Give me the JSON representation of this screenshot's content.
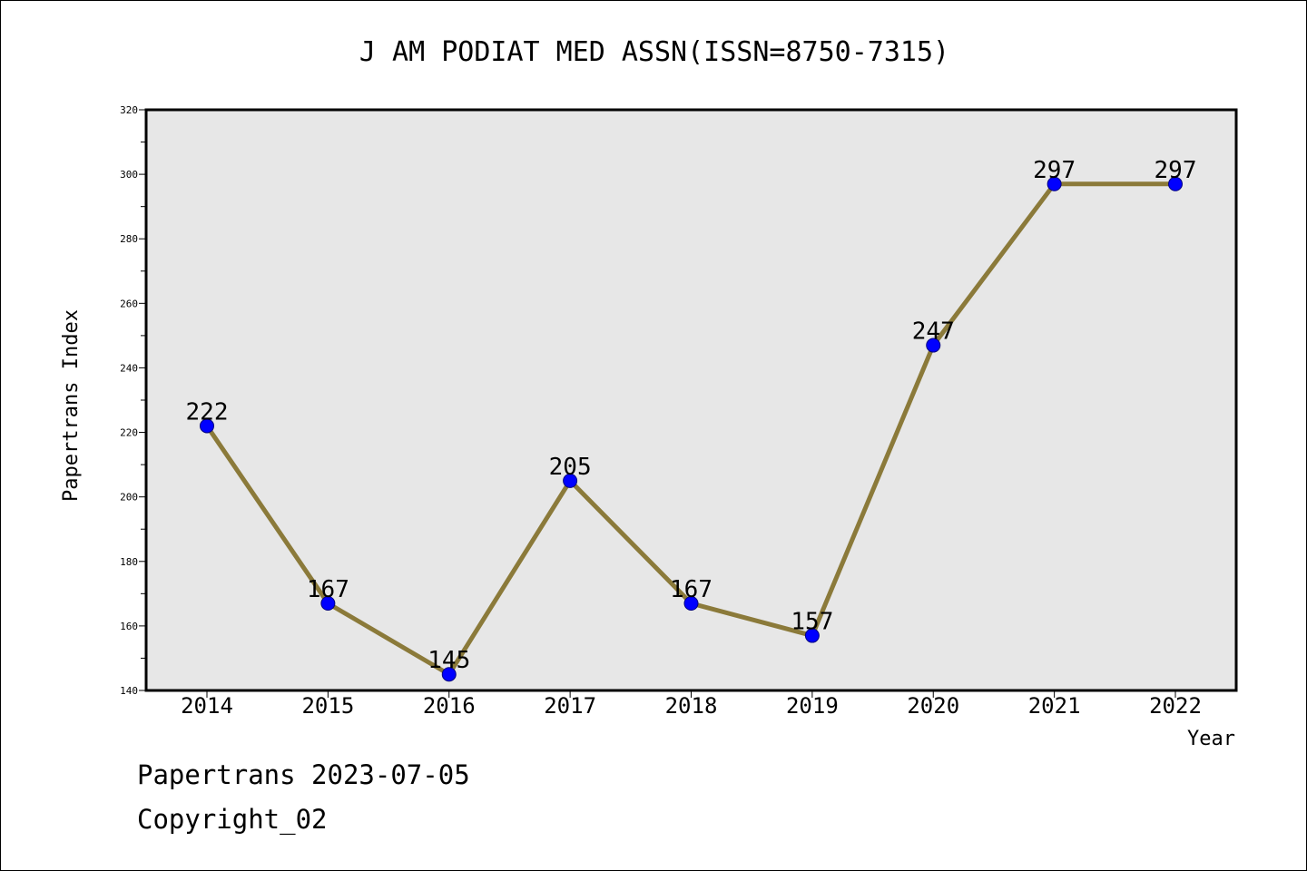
{
  "chart_data": {
    "type": "line",
    "title": "J AM PODIAT MED ASSN(ISSN=8750-7315)",
    "xlabel": "Year",
    "ylabel": "Papertrans Index",
    "categories": [
      "2014",
      "2015",
      "2016",
      "2017",
      "2018",
      "2019",
      "2020",
      "2021",
      "2022"
    ],
    "values": [
      222,
      167,
      145,
      205,
      167,
      157,
      247,
      297,
      297
    ],
    "data_labels": [
      "222",
      "167",
      "145",
      "205",
      "167",
      "157",
      "247",
      "297",
      "297"
    ],
    "ylim": [
      140,
      320
    ],
    "yticks": [
      140,
      160,
      180,
      200,
      220,
      240,
      260,
      280,
      300,
      320
    ],
    "grid": false,
    "legend": "none",
    "colors": {
      "line": "#8B7A3A",
      "marker": "#0000FF",
      "marker_edge": "#000080",
      "plot_background": "#E7E7E7"
    }
  },
  "footer": {
    "date_line": "Papertrans 2023-07-05",
    "copyright": "Copyright_02"
  }
}
